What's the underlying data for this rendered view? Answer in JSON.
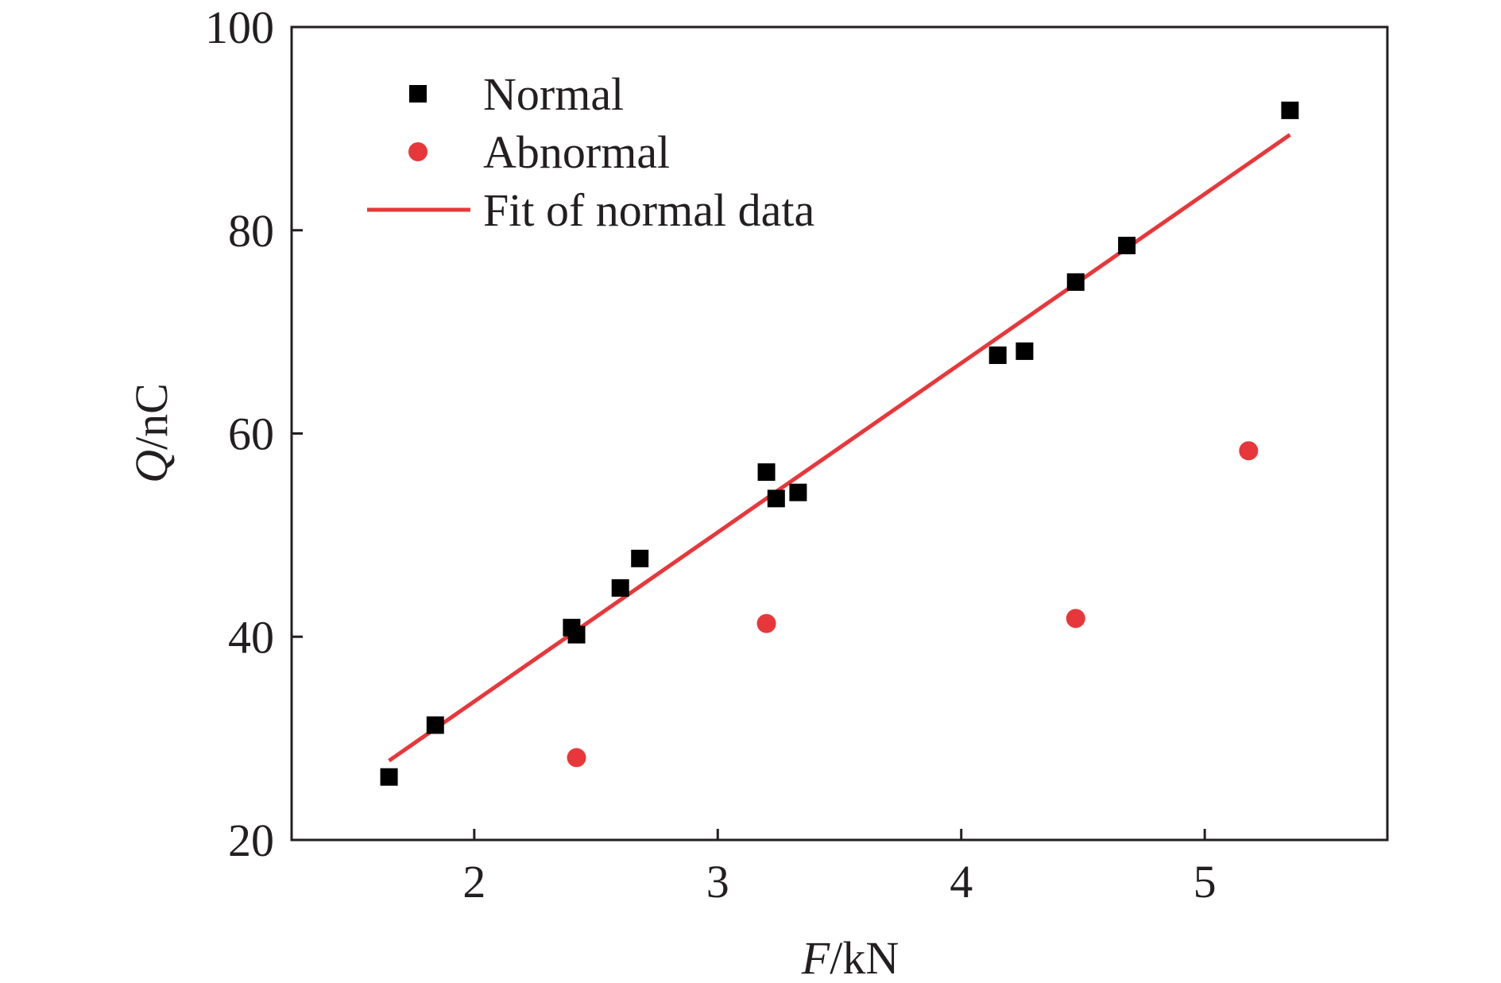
{
  "chart_data": {
    "type": "scatter",
    "title": "",
    "xlabel": {
      "symbol": "F",
      "unit": "/kN"
    },
    "ylabel": {
      "symbol": "Q",
      "unit": "/nC"
    },
    "xlim": [
      1.25,
      5.75
    ],
    "ylim": [
      20,
      100
    ],
    "xticks": [
      2,
      3,
      4,
      5
    ],
    "yticks": [
      20,
      40,
      60,
      80,
      100
    ],
    "grid": false,
    "legend_position": "top-left",
    "series": [
      {
        "name": "Normal",
        "marker": "square",
        "color": "#000000",
        "points": [
          [
            1.65,
            26.2
          ],
          [
            1.84,
            31.3
          ],
          [
            2.4,
            40.9
          ],
          [
            2.42,
            40.2
          ],
          [
            2.6,
            44.8
          ],
          [
            2.68,
            47.7
          ],
          [
            3.2,
            56.2
          ],
          [
            3.24,
            53.6
          ],
          [
            3.33,
            54.2
          ],
          [
            4.15,
            67.7
          ],
          [
            4.26,
            68.1
          ],
          [
            4.47,
            74.9
          ],
          [
            4.68,
            78.5
          ],
          [
            5.35,
            91.8
          ]
        ]
      },
      {
        "name": "Abnormal",
        "marker": "circle",
        "color": "#e8373a",
        "points": [
          [
            2.42,
            28.1
          ],
          [
            3.2,
            41.3
          ],
          [
            4.47,
            41.8
          ],
          [
            5.18,
            58.3
          ]
        ]
      },
      {
        "name": "Fit of normal data",
        "type": "line",
        "color": "#e8373a",
        "points": [
          [
            1.65,
            27.8
          ],
          [
            5.35,
            89.4
          ]
        ]
      }
    ]
  }
}
